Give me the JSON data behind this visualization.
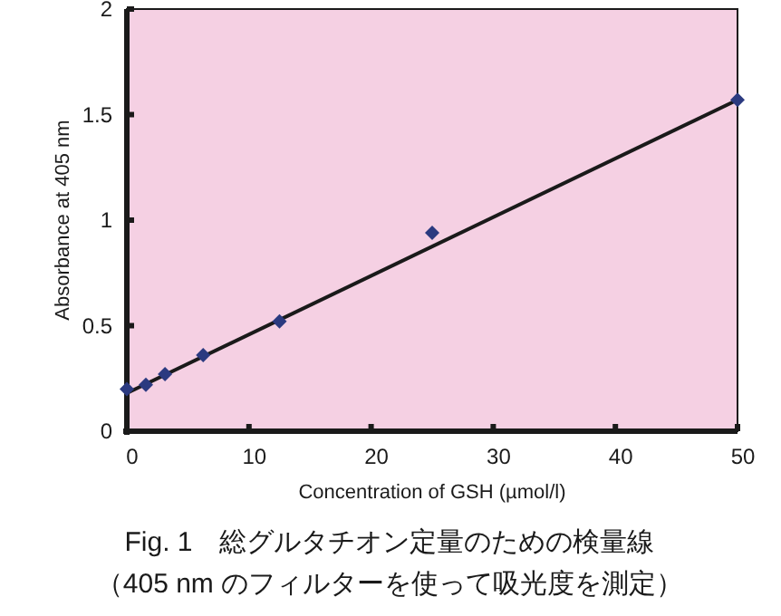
{
  "chart_data": {
    "type": "scatter",
    "title": "Fig. 1　総グルタチオン定量のための検量線",
    "subtitle": "（405 nm のフィルターを使って吸光度を測定）",
    "xlabel": "Concentration of GSH (µmol/l)",
    "ylabel": "Absorbance at 405 nm",
    "series": [
      {
        "type": "scatter",
        "color": "#2b3a80",
        "marker": "diamond",
        "x": [
          0,
          1.56,
          3.125,
          6.25,
          12.5,
          25,
          50
        ],
        "values": [
          0.2,
          0.22,
          0.27,
          0.36,
          0.52,
          0.94,
          1.57
        ]
      },
      {
        "type": "line",
        "color": "#1a1a1a",
        "marker": "none",
        "x": [
          0,
          50
        ],
        "values": [
          0.18,
          1.57
        ]
      }
    ],
    "xlim": [
      0,
      50
    ],
    "ylim": [
      0,
      2
    ],
    "xticks": [
      0,
      10,
      20,
      30,
      40,
      50
    ],
    "yticks": [
      0,
      0.5,
      1,
      1.5,
      2
    ],
    "grid": false
  }
}
